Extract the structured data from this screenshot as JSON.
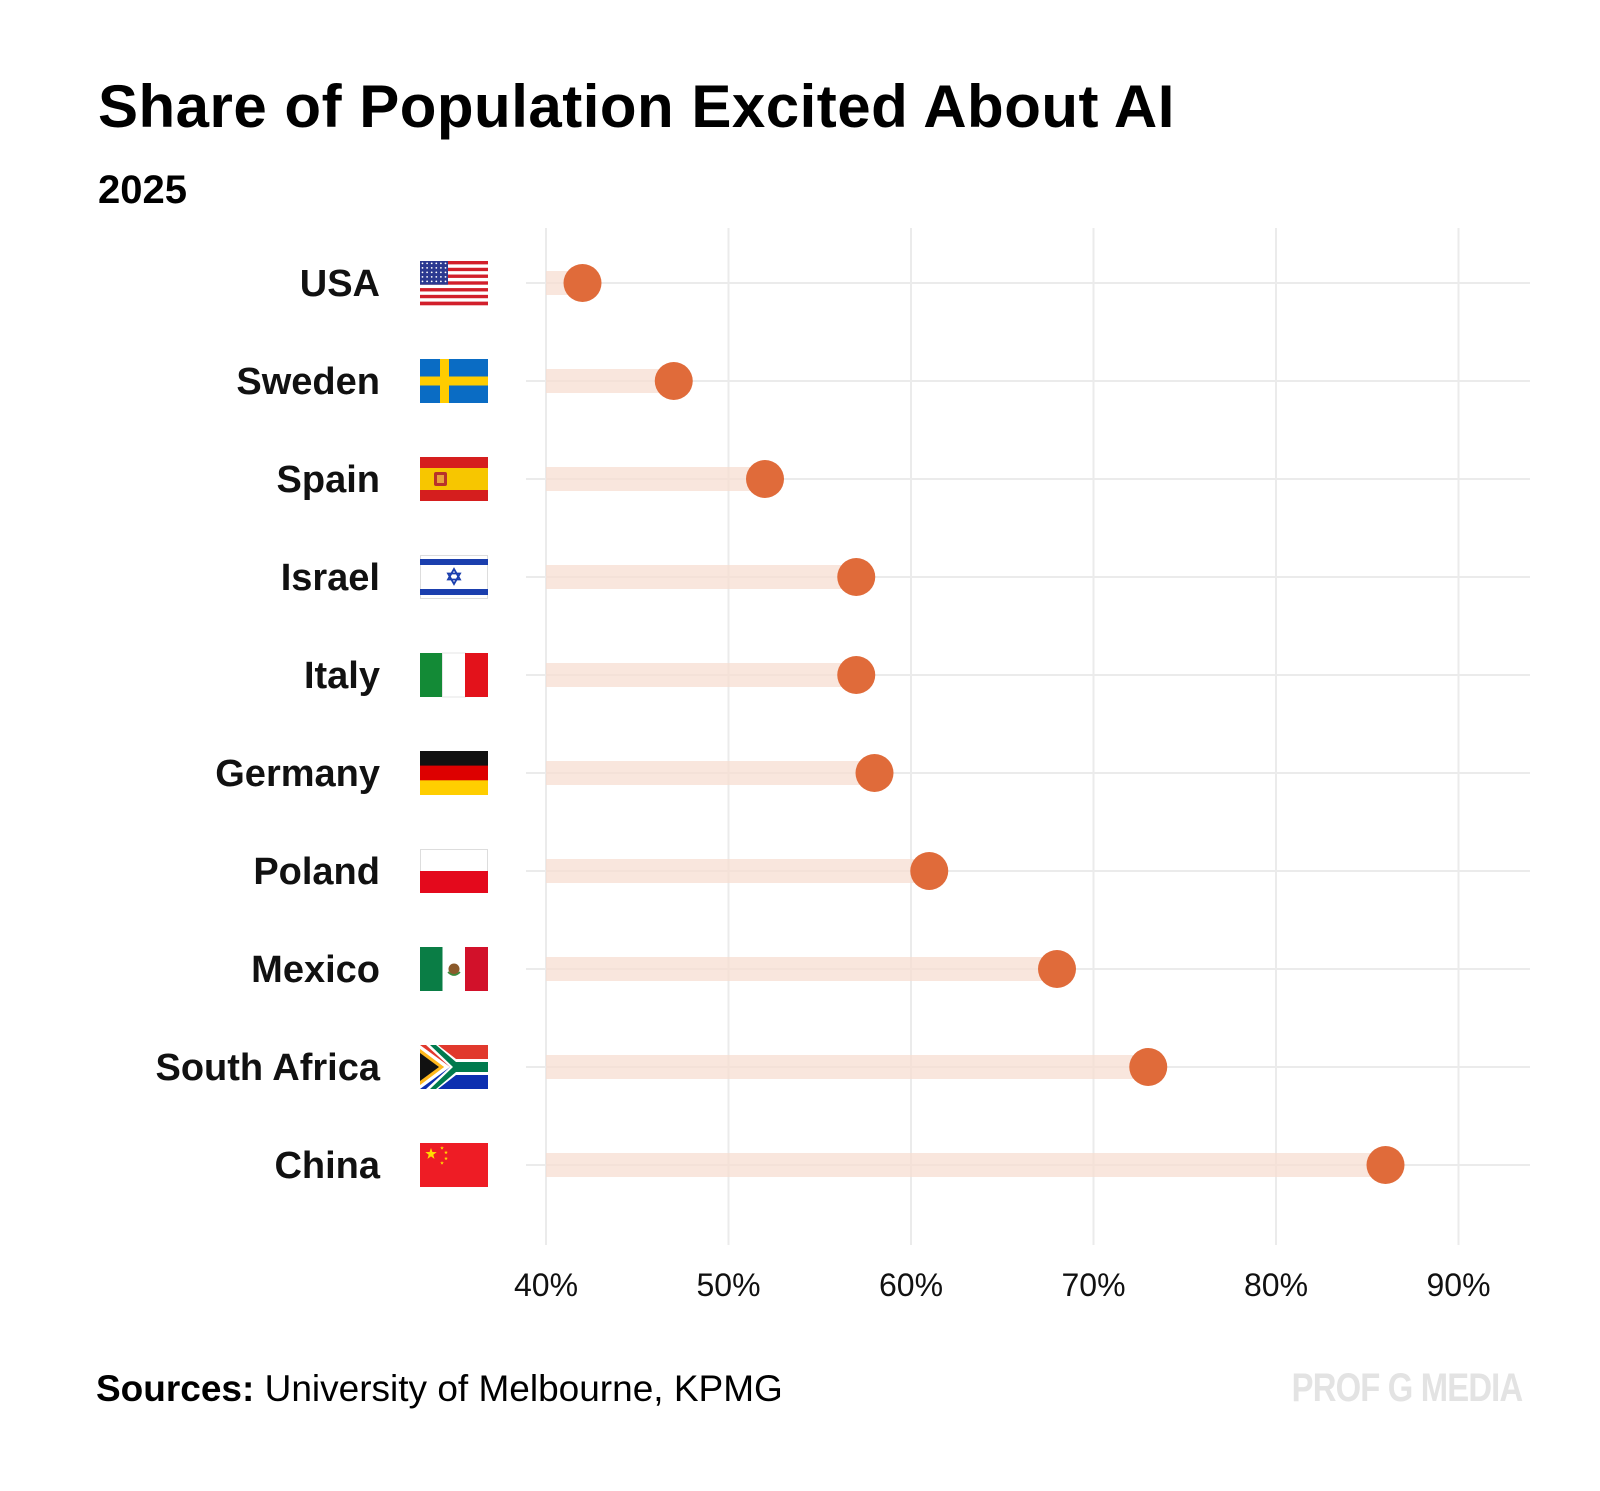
{
  "chart_data": {
    "type": "dot-plot",
    "title": "Share of Population Excited About AI",
    "subtitle": "2025",
    "xlabel": "",
    "ylabel": "",
    "xlim": [
      40,
      92
    ],
    "x_ticks": [
      40,
      50,
      60,
      70,
      80,
      90
    ],
    "x_tick_labels": [
      "40%",
      "50%",
      "60%",
      "70%",
      "80%",
      "90%"
    ],
    "grid": true,
    "categories": [
      "USA",
      "Sweden",
      "Spain",
      "Israel",
      "Italy",
      "Germany",
      "Poland",
      "Mexico",
      "South Africa",
      "China"
    ],
    "values": [
      42,
      47,
      52,
      57,
      57,
      58,
      61,
      68,
      73,
      86
    ],
    "flag_icons": [
      "usa-flag-icon",
      "sweden-flag-icon",
      "spain-flag-icon",
      "israel-flag-icon",
      "italy-flag-icon",
      "germany-flag-icon",
      "poland-flag-icon",
      "mexico-flag-icon",
      "south-africa-flag-icon",
      "china-flag-icon"
    ],
    "dot_color": "#E06B3A",
    "bar_color": "#F7DDD2"
  },
  "footer": {
    "sources_label": "Sources:",
    "sources_text": " University of Melbourne, KPMG",
    "brand": "PROF G MEDIA"
  }
}
